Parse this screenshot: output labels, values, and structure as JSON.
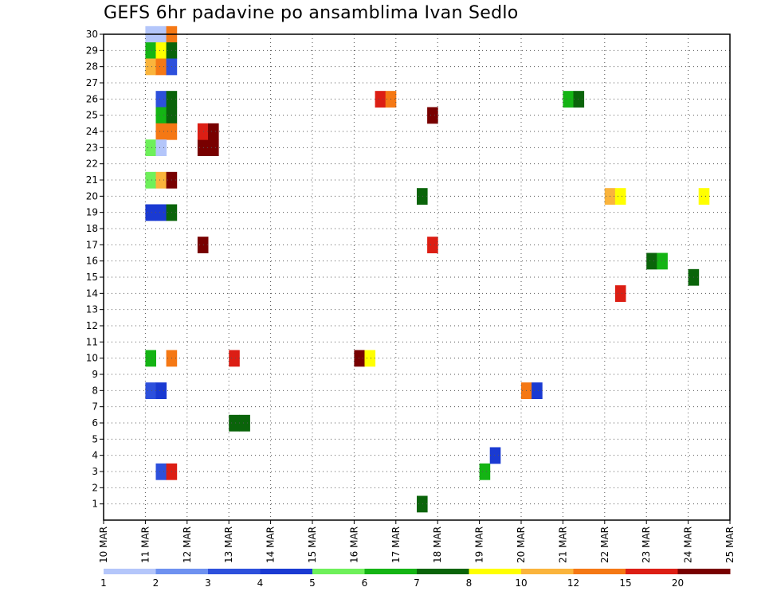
{
  "chart_data": {
    "type": "heatmap",
    "title": "GEFS 6hr padavine po ansamblima Ivan Sedlo",
    "xlabel": "",
    "ylabel": "",
    "x_axis": {
      "type": "date",
      "range": [
        "10 MAR",
        "25 MAR"
      ],
      "tick_labels": [
        "10 MAR",
        "11 MAR",
        "12 MAR",
        "13 MAR",
        "14 MAR",
        "15 MAR",
        "16 MAR",
        "17 MAR",
        "18 MAR",
        "19 MAR",
        "20 MAR",
        "21 MAR",
        "22 MAR",
        "23 MAR",
        "24 MAR",
        "25 MAR"
      ]
    },
    "y_axis": {
      "range": [
        0,
        30
      ],
      "tick_labels": [
        "1",
        "2",
        "3",
        "4",
        "5",
        "6",
        "7",
        "8",
        "9",
        "10",
        "11",
        "12",
        "13",
        "14",
        "15",
        "16",
        "17",
        "18",
        "19",
        "20",
        "21",
        "22",
        "23",
        "24",
        "25",
        "26",
        "27",
        "28",
        "29",
        "30"
      ]
    },
    "grid": "dotted",
    "legend": {
      "placement": "bottom",
      "levels": [
        "1",
        "2",
        "3",
        "4",
        "5",
        "6",
        "7",
        "8",
        "10",
        "12",
        "15",
        "20"
      ],
      "colors": [
        "#b4c6fa",
        "#6e91f0",
        "#2d50dc",
        "#1a3ad2",
        "#6ef05a",
        "#14b414",
        "#0a640a",
        "#ffff00",
        "#fab43c",
        "#f57814",
        "#dc1e14",
        "#780000"
      ]
    },
    "series_note": "Each filled cell = ensemble member (y) at a 6-hour step (x) with precipitation in the coloured class.",
    "cells": [
      {
        "day": "11 MAR",
        "step": 0,
        "member": 30,
        "cls": 0
      },
      {
        "day": "11 MAR",
        "step": 1,
        "member": 30,
        "cls": 0
      },
      {
        "day": "11 MAR",
        "step": 2,
        "member": 30,
        "cls": 9
      },
      {
        "day": "11 MAR",
        "step": 0,
        "member": 29,
        "cls": 5
      },
      {
        "day": "11 MAR",
        "step": 1,
        "member": 29,
        "cls": 7
      },
      {
        "day": "11 MAR",
        "step": 2,
        "member": 29,
        "cls": 6
      },
      {
        "day": "11 MAR",
        "step": 0,
        "member": 28,
        "cls": 8
      },
      {
        "day": "11 MAR",
        "step": 1,
        "member": 28,
        "cls": 9
      },
      {
        "day": "11 MAR",
        "step": 2,
        "member": 28,
        "cls": 2
      },
      {
        "day": "11 MAR",
        "step": 1,
        "member": 26,
        "cls": 2
      },
      {
        "day": "11 MAR",
        "step": 2,
        "member": 26,
        "cls": 6
      },
      {
        "day": "11 MAR",
        "step": 1,
        "member": 25,
        "cls": 5
      },
      {
        "day": "11 MAR",
        "step": 2,
        "member": 25,
        "cls": 6
      },
      {
        "day": "11 MAR",
        "step": 1,
        "member": 24,
        "cls": 9
      },
      {
        "day": "11 MAR",
        "step": 2,
        "member": 24,
        "cls": 9
      },
      {
        "day": "11 MAR",
        "step": 0,
        "member": 23,
        "cls": 4
      },
      {
        "day": "11 MAR",
        "step": 1,
        "member": 23,
        "cls": 0
      },
      {
        "day": "11 MAR",
        "step": 0,
        "member": 21,
        "cls": 4
      },
      {
        "day": "11 MAR",
        "step": 1,
        "member": 21,
        "cls": 8
      },
      {
        "day": "11 MAR",
        "step": 2,
        "member": 21,
        "cls": 11
      },
      {
        "day": "11 MAR",
        "step": 0,
        "member": 19,
        "cls": 3
      },
      {
        "day": "11 MAR",
        "step": 1,
        "member": 19,
        "cls": 3
      },
      {
        "day": "11 MAR",
        "step": 2,
        "member": 19,
        "cls": 6
      },
      {
        "day": "11 MAR",
        "step": 0,
        "member": 10,
        "cls": 5
      },
      {
        "day": "11 MAR",
        "step": 2,
        "member": 10,
        "cls": 9
      },
      {
        "day": "11 MAR",
        "step": 0,
        "member": 8,
        "cls": 2
      },
      {
        "day": "11 MAR",
        "step": 1,
        "member": 8,
        "cls": 3
      },
      {
        "day": "11 MAR",
        "step": 1,
        "member": 3,
        "cls": 2
      },
      {
        "day": "11 MAR",
        "step": 2,
        "member": 3,
        "cls": 10
      },
      {
        "day": "12 MAR",
        "step": 1,
        "member": 23,
        "cls": 11
      },
      {
        "day": "12 MAR",
        "step": 2,
        "member": 23,
        "cls": 11
      },
      {
        "day": "12 MAR",
        "step": 1,
        "member": 24,
        "cls": 10
      },
      {
        "day": "12 MAR",
        "step": 2,
        "member": 24,
        "cls": 11
      },
      {
        "day": "12 MAR",
        "step": 1,
        "member": 17,
        "cls": 11
      },
      {
        "day": "13 MAR",
        "step": 0,
        "member": 6,
        "cls": 6
      },
      {
        "day": "13 MAR",
        "step": 1,
        "member": 6,
        "cls": 6
      },
      {
        "day": "13 MAR",
        "step": 0,
        "member": 10,
        "cls": 10
      },
      {
        "day": "16 MAR",
        "step": 0,
        "member": 10,
        "cls": 11
      },
      {
        "day": "16 MAR",
        "step": 1,
        "member": 10,
        "cls": 7
      },
      {
        "day": "16 MAR",
        "step": 2,
        "member": 26,
        "cls": 10
      },
      {
        "day": "16 MAR",
        "step": 3,
        "member": 26,
        "cls": 9
      },
      {
        "day": "17 MAR",
        "step": 3,
        "member": 25,
        "cls": 11
      },
      {
        "day": "17 MAR",
        "step": 3,
        "member": 17,
        "cls": 10
      },
      {
        "day": "17 MAR",
        "step": 2,
        "member": 20,
        "cls": 6
      },
      {
        "day": "17 MAR",
        "step": 2,
        "member": 1,
        "cls": 6
      },
      {
        "day": "19 MAR",
        "step": 0,
        "member": 3,
        "cls": 5
      },
      {
        "day": "19 MAR",
        "step": 1,
        "member": 4,
        "cls": 3
      },
      {
        "day": "20 MAR",
        "step": 0,
        "member": 8,
        "cls": 9
      },
      {
        "day": "20 MAR",
        "step": 1,
        "member": 8,
        "cls": 3
      },
      {
        "day": "21 MAR",
        "step": 0,
        "member": 26,
        "cls": 5
      },
      {
        "day": "21 MAR",
        "step": 1,
        "member": 26,
        "cls": 6
      },
      {
        "day": "22 MAR",
        "step": 0,
        "member": 20,
        "cls": 8
      },
      {
        "day": "22 MAR",
        "step": 1,
        "member": 20,
        "cls": 7
      },
      {
        "day": "22 MAR",
        "step": 1,
        "member": 14,
        "cls": 10
      },
      {
        "day": "23 MAR",
        "step": 0,
        "member": 16,
        "cls": 6
      },
      {
        "day": "23 MAR",
        "step": 1,
        "member": 16,
        "cls": 5
      },
      {
        "day": "24 MAR",
        "step": 0,
        "member": 15,
        "cls": 6
      },
      {
        "day": "24 MAR",
        "step": 1,
        "member": 20,
        "cls": 7
      }
    ]
  }
}
